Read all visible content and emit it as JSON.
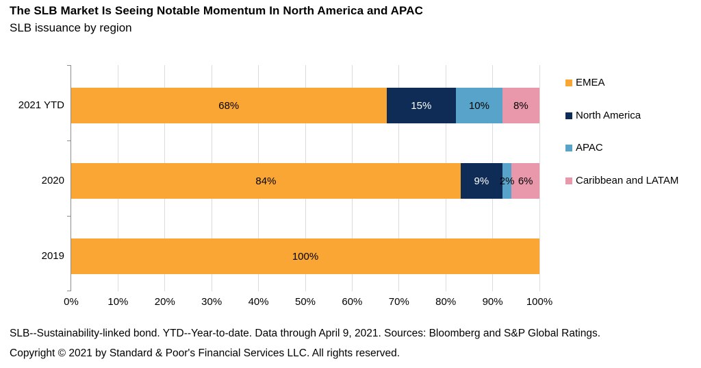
{
  "title": "The SLB Market Is Seeing Notable Momentum In North America and APAC",
  "subtitle": "SLB issuance by region",
  "footnotes": {
    "line1": "SLB--Sustainability-linked bond. YTD--Year-to-date. Data through April 9, 2021. Sources: Bloomberg and S&P Global Ratings.",
    "line2": "Copyright © 2021 by Standard & Poor's Financial Services LLC. All rights reserved."
  },
  "chart_data": {
    "type": "bar",
    "orientation": "horizontal",
    "stacked": true,
    "grid": true,
    "legend_position": "right",
    "categories": [
      "2021 YTD",
      "2020",
      "2019"
    ],
    "series": [
      {
        "name": "EMEA",
        "color": "#FAA634",
        "label_color": "#000000",
        "values": [
          68,
          84,
          100
        ]
      },
      {
        "name": "North America",
        "color": "#0E2C55",
        "label_color": "#FFFFFF",
        "values": [
          15,
          9,
          0
        ]
      },
      {
        "name": "APAC",
        "color": "#57A3C9",
        "label_color": "#000000",
        "values": [
          10,
          2,
          0
        ]
      },
      {
        "name": "Caribbean and LATAM",
        "color": "#E997AB",
        "label_color": "#000000",
        "values": [
          8,
          6,
          0
        ]
      }
    ],
    "x_ticks": [
      "0%",
      "10%",
      "20%",
      "30%",
      "40%",
      "50%",
      "60%",
      "70%",
      "80%",
      "90%",
      "100%"
    ],
    "xlim": [
      0,
      100
    ],
    "value_suffix": "%",
    "axis_color": "#8c8c8c",
    "gridline_color": "#dcdcdc"
  }
}
